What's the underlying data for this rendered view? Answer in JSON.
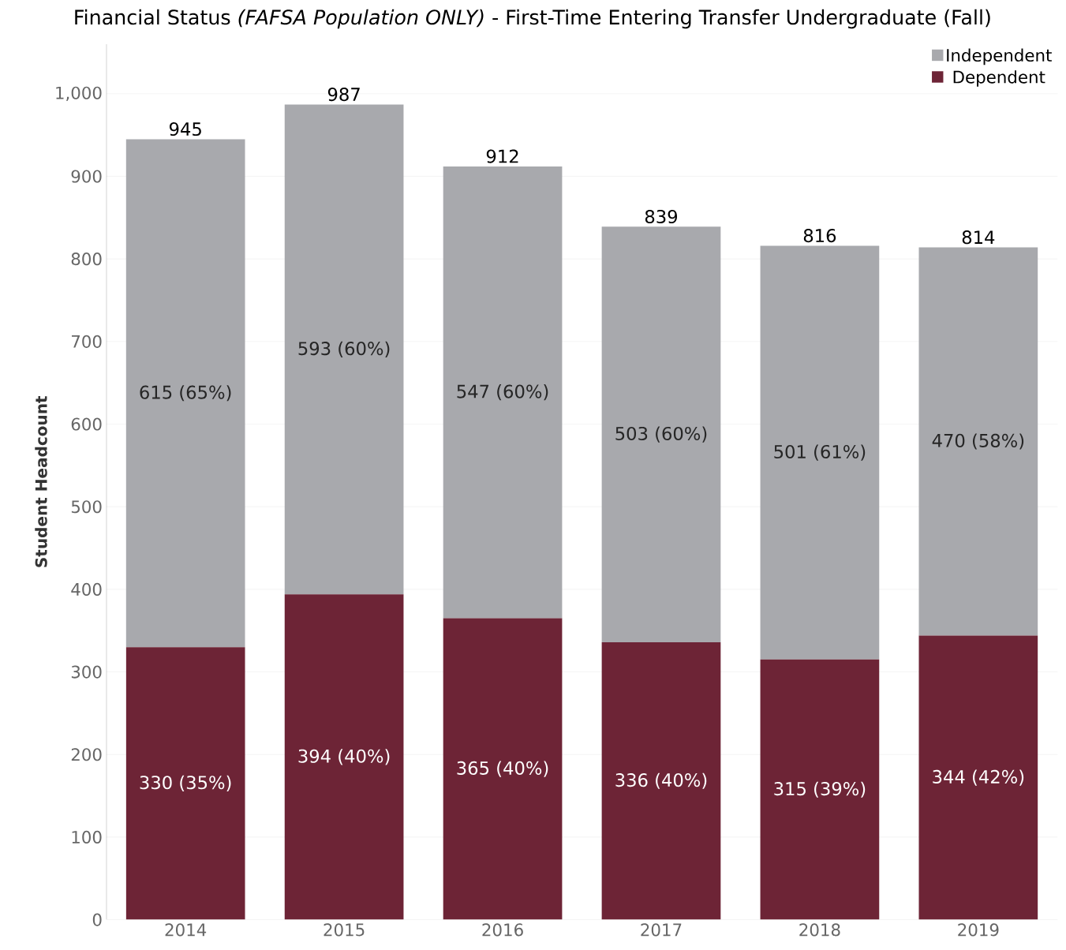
{
  "chart_data": {
    "type": "bar",
    "title": "Financial Status *(FAFSA Population ONLY)* - First-Time Entering Transfer Undergraduate (Fall)",
    "ylabel": "Student Headcount",
    "categories": [
      "2014",
      "2015",
      "2016",
      "2017",
      "2018",
      "2019"
    ],
    "stacked": true,
    "series": [
      {
        "name": "Dependent",
        "color": "#6d2436",
        "values": [
          330,
          394,
          365,
          336,
          315,
          344
        ],
        "value_labels": [
          "330 (35%)",
          "394 (40%)",
          "365 (40%)",
          "336 (40%)",
          "315 (39%)",
          "344 (42%)"
        ]
      },
      {
        "name": "Independent",
        "color": "#a8a9ad",
        "values": [
          615,
          593,
          547,
          503,
          501,
          470
        ],
        "value_labels": [
          "615 (65%)",
          "593 (60%)",
          "547 (60%)",
          "503 (60%)",
          "501 (61%)",
          "470 (58%)"
        ]
      }
    ],
    "totals": [
      "945",
      "987",
      "912",
      "839",
      "816",
      "814"
    ],
    "ylim": [
      0,
      1060
    ],
    "yticks": [
      0,
      100,
      200,
      300,
      400,
      500,
      600,
      700,
      800,
      900,
      {
        "value": 1000,
        "label": "1,000"
      }
    ],
    "grid": "y",
    "legend": "top right"
  }
}
